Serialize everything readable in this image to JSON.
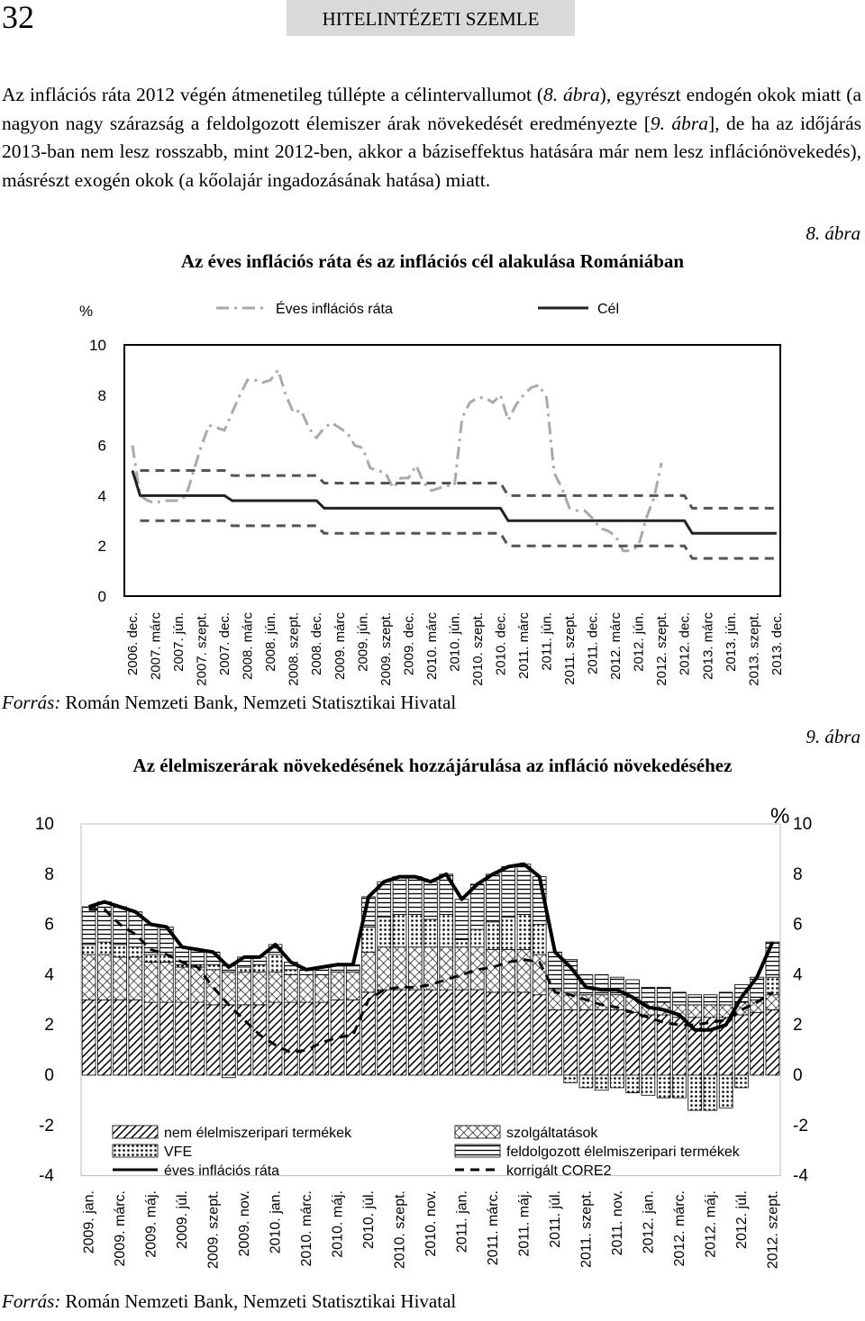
{
  "header": {
    "page_number": "32",
    "journal": "HITELINTÉZETI SZEMLE"
  },
  "paragraph": [
    "Az inflációs ráta 2012 végén átmenetileg túllépte a célintervallumot (",
    "8. ábra",
    "), egyrészt endogén okok miatt (a nagyon nagy szárazság a feldolgozott élemiszer árak növekedését eredményezte [",
    "9. ábra",
    "], de ha az időjárás 2013-ban nem lesz rosszabb, mint 2012-ben, akkor a báziseffektus hatására már nem lesz inflációnövekedés), másrészt exogén okok (a kőolajár ingadozásának hatása) miatt."
  ],
  "chart_data": [
    {
      "type": "line",
      "figure_label": "8. ábra",
      "title": "Az éves inflációs ráta és az inflációs cél alakulása Romániában",
      "unit": "%",
      "categories": [
        "2006. dec.",
        null,
        null,
        "2007. márc",
        null,
        null,
        "2007. jún.",
        null,
        null,
        "2007. szept.",
        null,
        null,
        "2007. dec.",
        null,
        null,
        "2008. márc",
        null,
        null,
        "2008. jún.",
        null,
        null,
        "2008. szept.",
        null,
        null,
        "2008. dec.",
        null,
        null,
        "2009. márc",
        null,
        null,
        "2009. jún.",
        null,
        null,
        "2009. szept.",
        null,
        null,
        "2009. dec.",
        null,
        null,
        "2010. márc",
        null,
        null,
        "2010. jún.",
        null,
        null,
        "2010. szept.",
        null,
        null,
        "2010. dec.",
        null,
        null,
        "2011. márc",
        null,
        null,
        "2011. jún.",
        null,
        null,
        "2011. szept.",
        null,
        null,
        "2011. dec.",
        null,
        null,
        "2012. márc",
        null,
        null,
        "2012. jún.",
        null,
        null,
        "2012. szept.",
        null,
        null,
        "2012. dec.",
        null,
        null,
        "2013. márc",
        null,
        null,
        "2013. jún.",
        null,
        null,
        "2013. szept.",
        null,
        null,
        "2013. dec."
      ],
      "series": [
        {
          "name": "Éves inflációs ráta",
          "color": "#aaaaaa",
          "dash": "dashdot",
          "values": [
            6.0,
            4.0,
            3.8,
            3.7,
            3.8,
            3.8,
            3.8,
            4.0,
            5.0,
            6.0,
            6.8,
            6.7,
            6.6,
            7.3,
            8.0,
            8.6,
            8.6,
            8.5,
            8.6,
            9.0,
            8.0,
            7.3,
            7.4,
            6.7,
            6.3,
            6.7,
            6.9,
            6.7,
            6.5,
            6.0,
            5.9,
            5.1,
            5.0,
            4.9,
            4.3,
            4.7,
            4.7,
            5.2,
            4.5,
            4.2,
            4.3,
            4.4,
            4.4,
            7.1,
            7.7,
            7.9,
            7.9,
            7.7,
            8.0,
            7.0,
            7.6,
            8.0,
            8.3,
            8.4,
            7.9,
            4.9,
            4.3,
            3.5,
            3.4,
            3.4,
            3.1,
            2.7,
            2.6,
            2.4,
            1.8,
            1.8,
            2.0,
            3.1,
            3.9,
            5.3,
            null,
            null,
            null,
            null,
            null,
            null,
            null,
            null,
            null,
            null,
            null,
            null,
            null,
            null,
            null
          ]
        },
        {
          "name": "Cél",
          "color": "#222222",
          "dash": "solid",
          "values": [
            5,
            4,
            4,
            4,
            4,
            4,
            4,
            4,
            4,
            4,
            4,
            4,
            4,
            3.8,
            3.8,
            3.8,
            3.8,
            3.8,
            3.8,
            3.8,
            3.8,
            3.8,
            3.8,
            3.8,
            3.8,
            3.5,
            3.5,
            3.5,
            3.5,
            3.5,
            3.5,
            3.5,
            3.5,
            3.5,
            3.5,
            3.5,
            3.5,
            3.5,
            3.5,
            3.5,
            3.5,
            3.5,
            3.5,
            3.5,
            3.5,
            3.5,
            3.5,
            3.5,
            3.5,
            3,
            3,
            3,
            3,
            3,
            3,
            3,
            3,
            3,
            3,
            3,
            3,
            3,
            3,
            3,
            3,
            3,
            3,
            3,
            3,
            3,
            3,
            3,
            3,
            2.5,
            2.5,
            2.5,
            2.5,
            2.5,
            2.5,
            2.5,
            2.5,
            2.5,
            2.5,
            2.5,
            2.5
          ]
        },
        {
          "color": "#555555",
          "dash": "dashed",
          "values": [
            null,
            5,
            5,
            5,
            5,
            5,
            5,
            5,
            5,
            5,
            5,
            5,
            5,
            4.8,
            4.8,
            4.8,
            4.8,
            4.8,
            4.8,
            4.8,
            4.8,
            4.8,
            4.8,
            4.8,
            4.8,
            4.5,
            4.5,
            4.5,
            4.5,
            4.5,
            4.5,
            4.5,
            4.5,
            4.5,
            4.5,
            4.5,
            4.5,
            4.5,
            4.5,
            4.5,
            4.5,
            4.5,
            4.5,
            4.5,
            4.5,
            4.5,
            4.5,
            4.5,
            4.5,
            4,
            4,
            4,
            4,
            4,
            4,
            4,
            4,
            4,
            4,
            4,
            4,
            4,
            4,
            4,
            4,
            4,
            4,
            4,
            4,
            4,
            4,
            4,
            4,
            3.5,
            3.5,
            3.5,
            3.5,
            3.5,
            3.5,
            3.5,
            3.5,
            3.5,
            3.5,
            3.5,
            3.5
          ]
        },
        {
          "color": "#555555",
          "dash": "dashed",
          "values": [
            null,
            3,
            3,
            3,
            3,
            3,
            3,
            3,
            3,
            3,
            3,
            3,
            3,
            2.8,
            2.8,
            2.8,
            2.8,
            2.8,
            2.8,
            2.8,
            2.8,
            2.8,
            2.8,
            2.8,
            2.8,
            2.5,
            2.5,
            2.5,
            2.5,
            2.5,
            2.5,
            2.5,
            2.5,
            2.5,
            2.5,
            2.5,
            2.5,
            2.5,
            2.5,
            2.5,
            2.5,
            2.5,
            2.5,
            2.5,
            2.5,
            2.5,
            2.5,
            2.5,
            2.5,
            2,
            2,
            2,
            2,
            2,
            2,
            2,
            2,
            2,
            2,
            2,
            2,
            2,
            2,
            2,
            2,
            2,
            2,
            2,
            2,
            2,
            2,
            2,
            2,
            1.5,
            1.5,
            1.5,
            1.5,
            1.5,
            1.5,
            1.5,
            1.5,
            1.5,
            1.5,
            1.5,
            1.5
          ]
        }
      ],
      "ylim": [
        0,
        10
      ],
      "yticks": [
        0,
        2,
        4,
        6,
        8,
        10
      ],
      "grid": false,
      "source_label": "Forrás:",
      "source": "Román Nemzeti Bank, Nemzeti Statisztikai Hivatal"
    },
    {
      "type": "bar",
      "stacked": true,
      "figure_label": "9. ábra",
      "title": "Az élelmiszerárak növekedésének hozzájárulása az infláció növekedéséhez",
      "unit": "%",
      "categories": [
        "2009. jan.",
        null,
        "2009. márc.",
        null,
        "2009. máj.",
        null,
        "2009. júl.",
        null,
        "2009. szept.",
        null,
        "2009. nov.",
        null,
        "2010. jan.",
        null,
        "2010. márc.",
        null,
        "2010. máj.",
        null,
        "2010. júl.",
        null,
        "2010. szept.",
        null,
        "2010. nov.",
        null,
        "2011. jan.",
        null,
        "2011. márc.",
        null,
        "2011. máj.",
        null,
        "2011. júl.",
        null,
        "2011. szept.",
        null,
        "2011. nov.",
        null,
        "2012. jan.",
        null,
        "2012. márc.",
        null,
        "2012. máj.",
        null,
        "2012. júl.",
        null,
        "2012. szept."
      ],
      "series": [
        {
          "name": "nem élelmiszeripari termékek",
          "type": "bar",
          "pattern": "diagonal",
          "color": "#000000",
          "values": [
            3.0,
            3.0,
            3.0,
            3.0,
            2.9,
            2.9,
            2.9,
            2.9,
            2.8,
            2.8,
            2.8,
            2.8,
            2.9,
            2.9,
            2.9,
            2.9,
            3.0,
            3.0,
            3.3,
            3.4,
            3.4,
            3.4,
            3.4,
            3.4,
            3.4,
            3.4,
            3.3,
            3.3,
            3.3,
            3.2,
            2.6,
            2.6,
            2.6,
            2.6,
            2.6,
            2.5,
            2.4,
            2.4,
            2.3,
            2.3,
            2.3,
            2.3,
            2.4,
            2.5,
            2.6
          ]
        },
        {
          "name": "szolgáltatások",
          "type": "bar",
          "pattern": "crosshatch",
          "color": "#000000",
          "values": [
            1.8,
            1.8,
            1.7,
            1.7,
            1.6,
            1.6,
            1.4,
            1.4,
            1.4,
            1.3,
            1.3,
            1.3,
            1.2,
            1.1,
            1.1,
            1.1,
            1.1,
            1.1,
            1.6,
            1.7,
            1.7,
            1.7,
            1.7,
            1.7,
            1.7,
            1.7,
            1.7,
            1.7,
            1.7,
            1.6,
            0.8,
            0.7,
            0.6,
            0.6,
            0.6,
            0.6,
            0.5,
            0.5,
            0.5,
            0.5,
            0.5,
            0.5,
            0.5,
            0.5,
            0.6
          ]
        },
        {
          "name": "VFE",
          "type": "bar",
          "pattern": "dots",
          "color": "#000000",
          "values": [
            0.4,
            0.5,
            0.5,
            0.4,
            0.3,
            0.3,
            0.1,
            0.1,
            0.2,
            -0.1,
            0.2,
            0.3,
            0.7,
            0.2,
            0,
            0,
            0,
            0,
            1.0,
            1.2,
            1.3,
            1.3,
            1.1,
            1.3,
            0.3,
            0.7,
            1.1,
            1.3,
            1.4,
            1.2,
            0,
            -0.3,
            -0.5,
            -0.6,
            -0.5,
            -0.7,
            -0.8,
            -0.9,
            -0.9,
            -1.4,
            -1.4,
            -1.3,
            -0.5,
            0,
            0.7
          ]
        },
        {
          "name": "feldolgozott élelmiszeripari termékek",
          "type": "bar",
          "pattern": "horizontal",
          "color": "#000000",
          "values": [
            1.5,
            1.6,
            1.5,
            1.4,
            1.2,
            1.1,
            0.7,
            0.6,
            0.5,
            0.3,
            0.4,
            0.3,
            0.4,
            0.3,
            0.2,
            0.3,
            0.3,
            0.3,
            1.2,
            1.4,
            1.5,
            1.5,
            1.5,
            1.6,
            1.6,
            1.8,
            1.9,
            2.0,
            2.0,
            1.9,
            1.5,
            1.3,
            0.8,
            0.8,
            0.7,
            0.7,
            0.6,
            0.6,
            0.5,
            0.4,
            0.4,
            0.5,
            0.7,
            0.9,
            1.4
          ]
        },
        {
          "name": "éves inflációs ráta",
          "type": "line",
          "dash": "solid",
          "color": "#000000",
          "values": [
            6.7,
            6.9,
            6.7,
            6.5,
            6.0,
            5.9,
            5.1,
            5.0,
            4.9,
            4.3,
            4.7,
            4.7,
            5.2,
            4.5,
            4.2,
            4.3,
            4.4,
            4.4,
            7.1,
            7.7,
            7.9,
            7.9,
            7.7,
            8.0,
            7.0,
            7.6,
            8.0,
            8.3,
            8.4,
            7.9,
            4.9,
            4.3,
            3.5,
            3.4,
            3.4,
            3.1,
            2.7,
            2.6,
            2.4,
            1.8,
            1.8,
            2.0,
            3.1,
            3.9,
            5.3
          ]
        },
        {
          "name": "korrigált CORE2",
          "type": "line",
          "dash": "dashed",
          "color": "#000000",
          "values": [
            6.6,
            6.6,
            6.0,
            5.6,
            5.0,
            4.8,
            4.5,
            4.3,
            3.5,
            2.8,
            2.2,
            1.6,
            1.2,
            0.9,
            1.0,
            1.3,
            1.5,
            1.6,
            3.0,
            3.4,
            3.5,
            3.5,
            3.6,
            3.8,
            4.0,
            4.2,
            4.3,
            4.5,
            4.6,
            4.5,
            3.3,
            3.2,
            3.0,
            2.8,
            2.7,
            2.5,
            2.3,
            2.1,
            2.0,
            2.0,
            2.1,
            2.2,
            2.6,
            2.9,
            3.3
          ]
        }
      ],
      "ylim": [
        -4,
        10
      ],
      "yticks": [
        -4,
        -2,
        0,
        2,
        4,
        6,
        8,
        10
      ],
      "y2lim": [
        -4,
        10
      ],
      "y2ticks": [
        -4,
        -2,
        0,
        2,
        4,
        6,
        8,
        10
      ],
      "grid": false,
      "source_label": "Forrás:",
      "source": "Román Nemzeti Bank, Nemzeti Statisztikai Hivatal"
    }
  ]
}
